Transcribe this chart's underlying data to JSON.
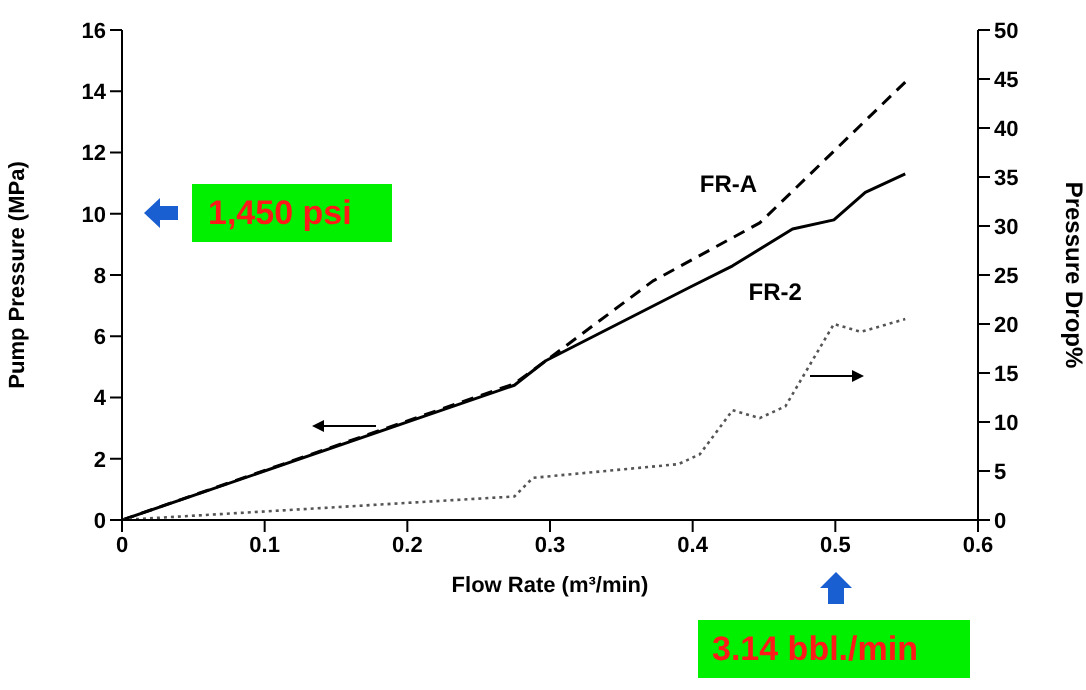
{
  "chart_data": {
    "type": "line",
    "xlabel": "Flow Rate (m³/min)",
    "ylabel": "Pump Pressure (MPa)",
    "y2label": "Pressure Drop%",
    "xlim": [
      0,
      0.6
    ],
    "xticks": [
      0,
      0.1,
      0.2,
      0.3,
      0.4,
      0.5,
      0.6
    ],
    "ylim": [
      0,
      16
    ],
    "yticks": [
      0,
      2,
      4,
      6,
      8,
      10,
      12,
      14,
      16
    ],
    "y2lim": [
      0,
      50
    ],
    "y2ticks": [
      0,
      5,
      10,
      15,
      20,
      25,
      30,
      35,
      40,
      45,
      50
    ],
    "marker": "none",
    "series": [
      {
        "name": "FR-A",
        "color": "#000000",
        "line_style": "dashed",
        "x": [
          0,
          0.275,
          0.3,
          0.372,
          0.447,
          0.549
        ],
        "values": [
          0,
          4.45,
          5.3,
          7.8,
          9.7,
          14.3
        ]
      },
      {
        "name": "FR-2",
        "color": "#000000",
        "line_style": "solid",
        "x": [
          0,
          0.275,
          0.297,
          0.398,
          0.428,
          0.47,
          0.499,
          0.521,
          0.549
        ],
        "values": [
          0,
          4.4,
          5.2,
          7.6,
          8.3,
          9.5,
          9.8,
          10.7,
          11.3
        ]
      },
      {
        "color": "#555555",
        "line_style": "dotted",
        "axis": "y2",
        "x": [
          0,
          0.275,
          0.288,
          0.39,
          0.405,
          0.428,
          0.447,
          0.465,
          0.499,
          0.518,
          0.549
        ],
        "values": [
          0,
          2.4,
          4.3,
          5.7,
          6.7,
          11.2,
          10.4,
          11.6,
          20,
          19.2,
          20.5
        ]
      }
    ],
    "annotations": [
      "1,450 psi",
      "3.14 bbl./min"
    ]
  }
}
